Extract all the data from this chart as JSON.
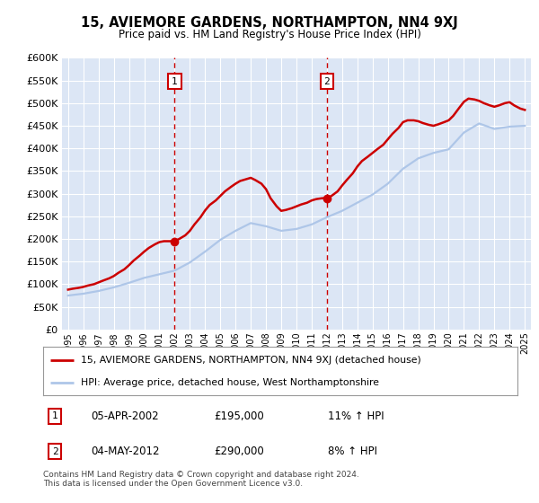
{
  "title": "15, AVIEMORE GARDENS, NORTHAMPTON, NN4 9XJ",
  "subtitle": "Price paid vs. HM Land Registry's House Price Index (HPI)",
  "background_color": "#dce6f5",
  "plot_bg_color": "#dce6f5",
  "grid_color": "#ffffff",
  "ylim": [
    0,
    600000
  ],
  "yticks": [
    0,
    50000,
    100000,
    150000,
    200000,
    250000,
    300000,
    350000,
    400000,
    450000,
    500000,
    550000,
    600000
  ],
  "hpi_color": "#aec6e8",
  "price_color": "#cc0000",
  "dashed_color": "#cc0000",
  "legend_line1": "15, AVIEMORE GARDENS, NORTHAMPTON, NN4 9XJ (detached house)",
  "legend_line2": "HPI: Average price, detached house, West Northamptonshire",
  "annotation1_date": "05-APR-2002",
  "annotation1_price": "£195,000",
  "annotation1_hpi": "11% ↑ HPI",
  "annotation2_date": "04-MAY-2012",
  "annotation2_price": "£290,000",
  "annotation2_hpi": "8% ↑ HPI",
  "footer": "Contains HM Land Registry data © Crown copyright and database right 2024.\nThis data is licensed under the Open Government Licence v3.0.",
  "years": [
    1995,
    1996,
    1997,
    1998,
    1999,
    2000,
    2001,
    2002,
    2003,
    2004,
    2005,
    2006,
    2007,
    2008,
    2009,
    2010,
    2011,
    2012,
    2013,
    2014,
    2015,
    2016,
    2017,
    2018,
    2019,
    2020,
    2021,
    2022,
    2023,
    2024,
    2025
  ],
  "hpi_values": [
    75000,
    79000,
    85000,
    93000,
    103000,
    114000,
    122000,
    130000,
    148000,
    172000,
    198000,
    218000,
    235000,
    228000,
    218000,
    222000,
    232000,
    248000,
    262000,
    280000,
    298000,
    322000,
    355000,
    378000,
    390000,
    398000,
    435000,
    455000,
    443000,
    448000,
    450000
  ],
  "price_values_x": [
    1995.0,
    1995.3,
    1995.7,
    1996.0,
    1996.3,
    1996.7,
    1997.0,
    1997.3,
    1997.7,
    1998.0,
    1998.3,
    1998.7,
    1999.0,
    1999.3,
    1999.7,
    2000.0,
    2000.3,
    2000.7,
    2001.0,
    2001.3,
    2001.7,
    2002.0,
    2002.3,
    2002.7,
    2003.0,
    2003.3,
    2003.7,
    2004.0,
    2004.3,
    2004.7,
    2005.0,
    2005.3,
    2005.7,
    2006.0,
    2006.3,
    2006.7,
    2007.0,
    2007.3,
    2007.7,
    2008.0,
    2008.3,
    2008.7,
    2009.0,
    2009.3,
    2009.7,
    2010.0,
    2010.3,
    2010.7,
    2011.0,
    2011.3,
    2011.7,
    2012.0,
    2012.3,
    2012.7,
    2013.0,
    2013.3,
    2013.7,
    2014.0,
    2014.3,
    2014.7,
    2015.0,
    2015.3,
    2015.7,
    2016.0,
    2016.3,
    2016.7,
    2017.0,
    2017.3,
    2017.7,
    2018.0,
    2018.3,
    2018.7,
    2019.0,
    2019.3,
    2019.7,
    2020.0,
    2020.3,
    2020.7,
    2021.0,
    2021.3,
    2021.7,
    2022.0,
    2022.3,
    2022.7,
    2023.0,
    2023.3,
    2023.7,
    2024.0,
    2024.3,
    2024.7,
    2025.0
  ],
  "price_values_y": [
    88000,
    90000,
    92000,
    94000,
    97000,
    100000,
    104000,
    108000,
    113000,
    118000,
    125000,
    133000,
    142000,
    152000,
    163000,
    172000,
    180000,
    188000,
    193000,
    195000,
    195000,
    195000,
    200000,
    208000,
    218000,
    232000,
    248000,
    263000,
    275000,
    285000,
    295000,
    305000,
    315000,
    322000,
    328000,
    332000,
    335000,
    330000,
    322000,
    310000,
    290000,
    272000,
    262000,
    264000,
    268000,
    272000,
    276000,
    280000,
    285000,
    288000,
    290000,
    290000,
    295000,
    305000,
    318000,
    330000,
    345000,
    360000,
    372000,
    382000,
    390000,
    398000,
    408000,
    420000,
    432000,
    445000,
    458000,
    462000,
    462000,
    460000,
    456000,
    452000,
    450000,
    453000,
    458000,
    462000,
    472000,
    490000,
    503000,
    510000,
    508000,
    505000,
    500000,
    495000,
    492000,
    495000,
    500000,
    502000,
    495000,
    488000,
    485000
  ],
  "anno1_x": 2002.0,
  "anno1_y": 195000,
  "anno2_x": 2012.0,
  "anno2_y": 290000,
  "xtick_years": [
    1995,
    1996,
    1997,
    1998,
    1999,
    2000,
    2001,
    2002,
    2003,
    2004,
    2005,
    2006,
    2007,
    2008,
    2009,
    2010,
    2011,
    2012,
    2013,
    2014,
    2015,
    2016,
    2017,
    2018,
    2019,
    2020,
    2021,
    2022,
    2023,
    2024,
    2025
  ]
}
